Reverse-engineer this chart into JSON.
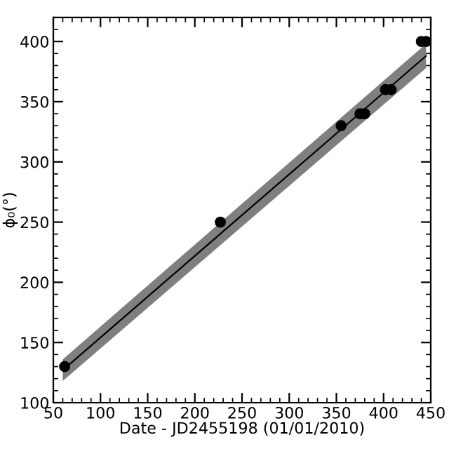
{
  "chart_data": {
    "type": "scatter",
    "xlabel": "Date - JD2455198 (01/01/2010)",
    "ylabel": "ϕ₀(°)",
    "xlim": [
      50,
      450
    ],
    "xticks": [
      50,
      100,
      150,
      200,
      250,
      300,
      350,
      400,
      450
    ],
    "ylim": [
      100,
      420
    ],
    "yticks": [
      100,
      150,
      200,
      250,
      300,
      350,
      400
    ],
    "grid": false,
    "legend": false,
    "marker": "circle",
    "series": [
      {
        "type": "line",
        "marker": "none",
        "color": "#000000",
        "x": [
          60,
          445
        ],
        "values": [
          127,
          388
        ],
        "lower": [
          118,
          378
        ],
        "upper": [
          136,
          398
        ]
      },
      {
        "color": "#000000",
        "x": [
          62,
          227,
          355,
          375,
          380,
          402,
          408,
          440,
          445
        ],
        "values": [
          130,
          250,
          330,
          340,
          340,
          360,
          360,
          400,
          400
        ]
      }
    ]
  }
}
